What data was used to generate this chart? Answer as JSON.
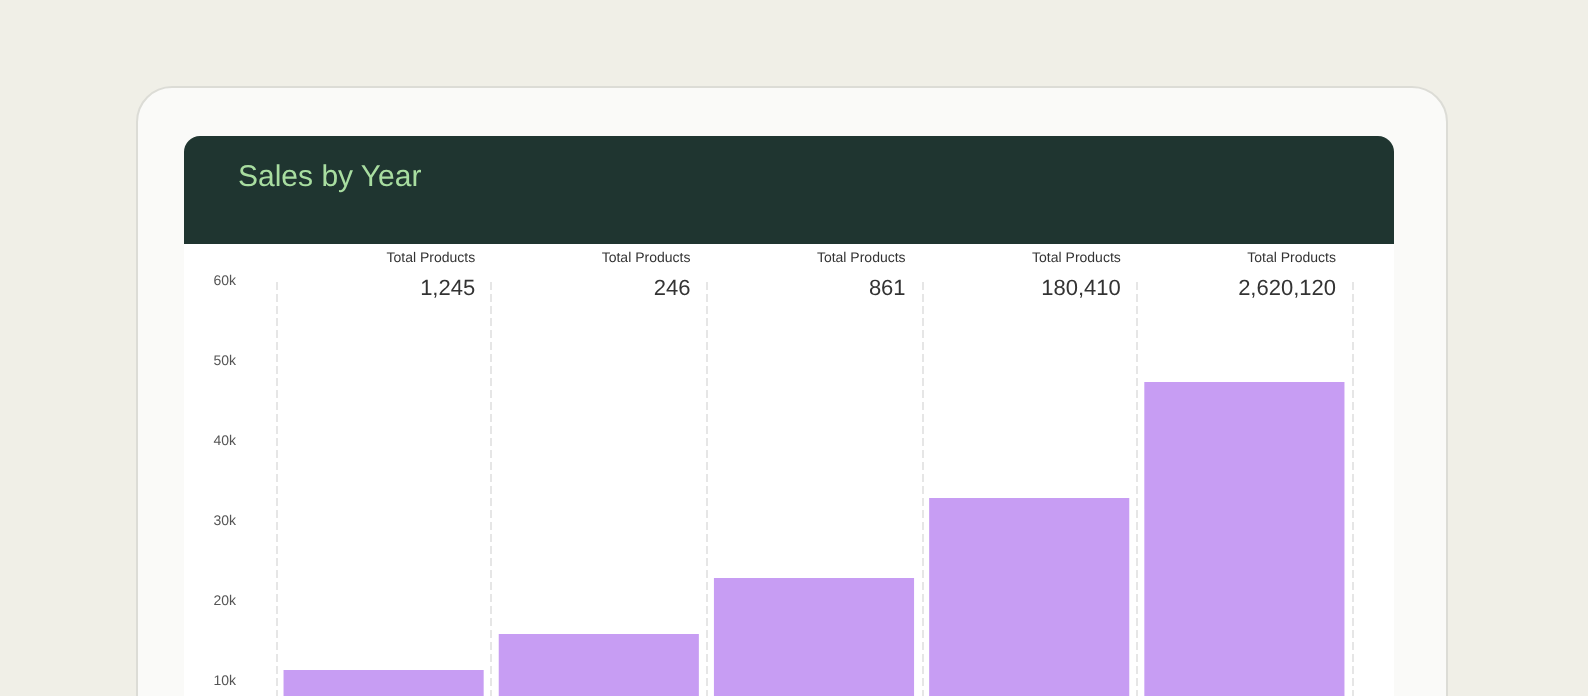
{
  "chart_data": {
    "type": "bar",
    "title": "Sales by Year",
    "categories": [
      null,
      null,
      null,
      null,
      null
    ],
    "values": [
      11500,
      16000,
      23000,
      33000,
      47500
    ],
    "color": "#c79df3",
    "ylim": [
      8000,
      60000
    ],
    "yticks": [
      {
        "value": 10000,
        "label": "10k"
      },
      {
        "value": 20000,
        "label": "20k"
      },
      {
        "value": 30000,
        "label": "30k"
      },
      {
        "value": 40000,
        "label": "40k"
      },
      {
        "value": 50000,
        "label": "50k"
      },
      {
        "value": 60000,
        "label": "60k"
      }
    ],
    "grid": "x",
    "annotations": [
      "Total Products\n1,245",
      "Total Products\n246",
      "Total Products\n861",
      "Total Products\n180,410",
      "Total Products\n2,620,120"
    ]
  }
}
